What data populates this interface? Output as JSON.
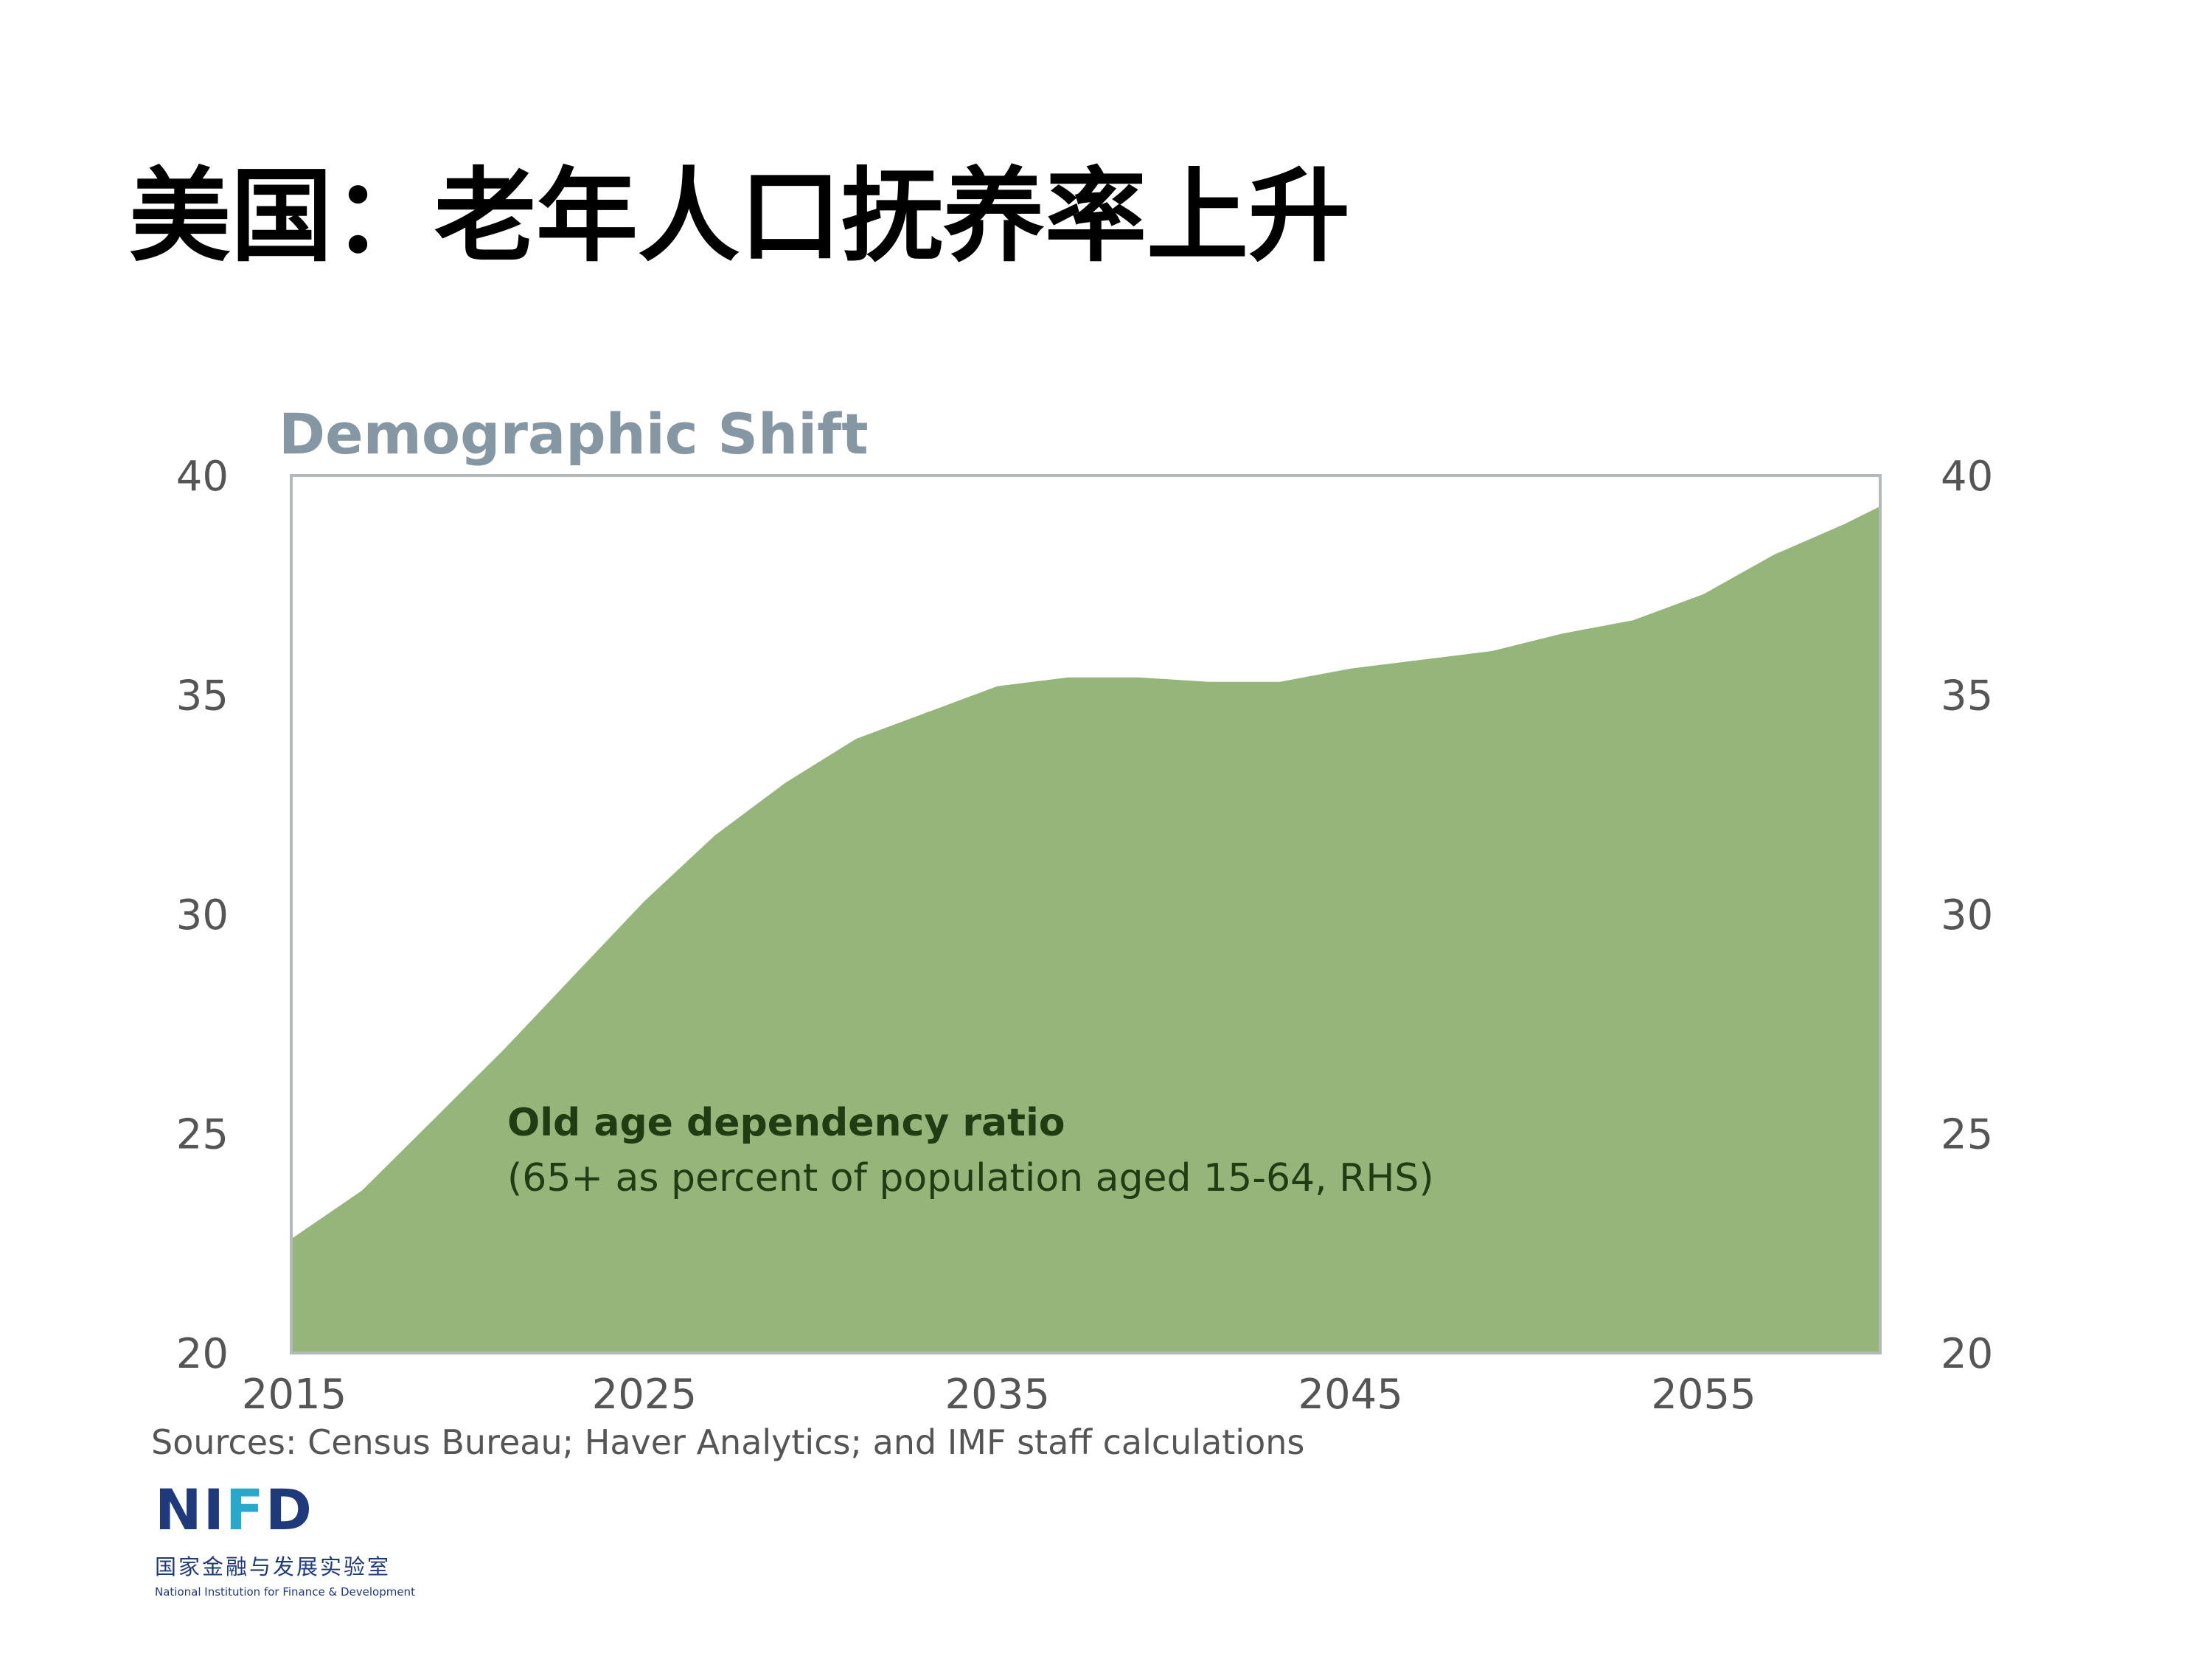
{
  "slide": {
    "title": "美国：老年人口抚养率上升"
  },
  "chart_data": {
    "type": "area",
    "title": "Demographic Shift",
    "annotation": {
      "title": "Old age dependency ratio",
      "subtitle": "(65+ as percent of population  aged 15-64, RHS)"
    },
    "source": "Sources: Census Bureau; Haver Analytics; and IMF staff calculations",
    "xlim": [
      2015,
      2060
    ],
    "x_ticks": [
      2015,
      2025,
      2035,
      2045,
      2055
    ],
    "ylim": [
      20,
      40
    ],
    "y_ticks": [
      20,
      25,
      30,
      35,
      40
    ],
    "y_axes": [
      "left",
      "right"
    ],
    "grid": false,
    "series": [
      {
        "x": [
          2015,
          2017,
          2019,
          2021,
          2023,
          2025,
          2027,
          2029,
          2031,
          2033,
          2035,
          2037,
          2039,
          2041,
          2043,
          2045,
          2047,
          2049,
          2051,
          2053,
          2055,
          2057,
          2059,
          2060
        ],
        "values": [
          22.6,
          23.7,
          25.3,
          26.9,
          28.6,
          30.3,
          31.8,
          33.0,
          34.0,
          34.6,
          35.2,
          35.4,
          35.4,
          35.3,
          35.3,
          35.6,
          35.8,
          36.0,
          36.4,
          36.7,
          37.3,
          38.2,
          38.9,
          39.3
        ]
      }
    ],
    "colors": {
      "area": "#96b57a",
      "frame": "#b4b9bd"
    }
  },
  "logo": {
    "cn": "国家金融与发展实验室",
    "en": "National Institution for Finance & Development"
  }
}
